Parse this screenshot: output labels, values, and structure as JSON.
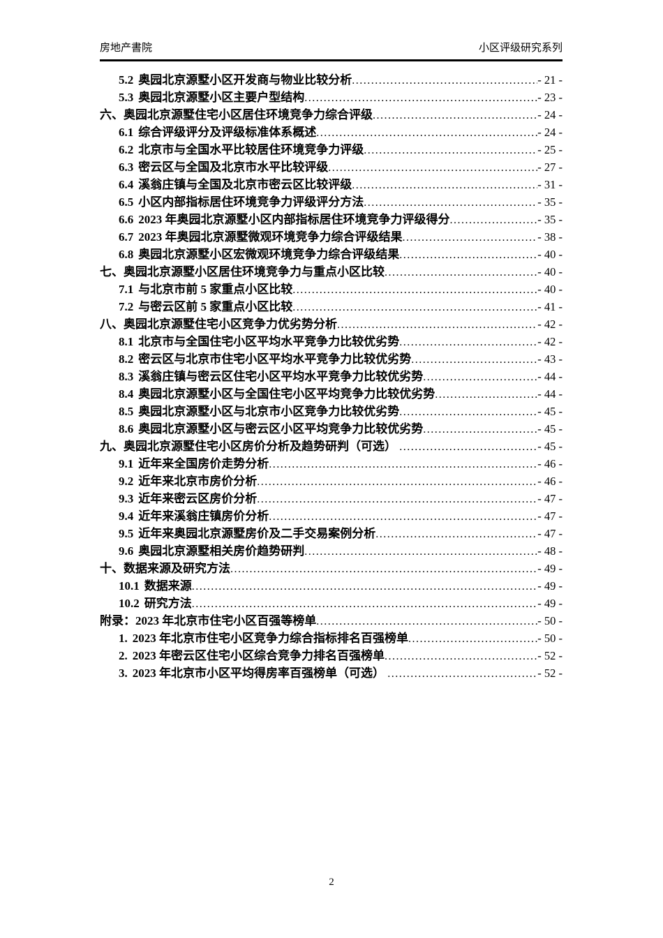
{
  "colors": {
    "text": "#000000",
    "background": "#ffffff"
  },
  "header": {
    "left": "房地产書院",
    "right": "小区评级研究系列"
  },
  "toc": {
    "entries": [
      {
        "level": 2,
        "no": "5.2",
        "title": "奥园北京源墅小区开发商与物业比较分析",
        "page": "- 21 -"
      },
      {
        "level": 2,
        "no": "5.3",
        "title": "奥园北京源墅小区主要户型结构",
        "page": "- 23 -"
      },
      {
        "level": 1,
        "no": "六、",
        "title": "奥园北京源墅住宅小区居住环境竞争力综合评级",
        "page": "- 24 -"
      },
      {
        "level": 2,
        "no": "6.1",
        "title": "综合评级评分及评级标准体系概述",
        "page": "- 24 -"
      },
      {
        "level": 2,
        "no": "6.2",
        "title": "北京市与全国水平比较居住环境竞争力评级",
        "page": "- 25 -"
      },
      {
        "level": 2,
        "no": "6.3",
        "title": "密云区与全国及北京市水平比较评级",
        "page": "- 27 -"
      },
      {
        "level": 2,
        "no": "6.4",
        "title": "溪翁庄镇与全国及北京市密云区比较评级",
        "page": "- 31 -"
      },
      {
        "level": 2,
        "no": "6.5",
        "title": "小区内部指标居住环境竞争力评级评分方法",
        "page": "- 35 -"
      },
      {
        "level": 2,
        "no": "6.6",
        "title": "2023 年奥园北京源墅小区内部指标居住环境竞争力评级得分",
        "page": "- 35 -"
      },
      {
        "level": 2,
        "no": "6.7",
        "title": "2023 年奥园北京源墅微观环境竞争力综合评级结果",
        "page": "- 38 -"
      },
      {
        "level": 2,
        "no": "6.8",
        "title": "奥园北京源墅小区宏微观环境竞争力综合评级结果",
        "page": "- 40 -"
      },
      {
        "level": 1,
        "no": "七、",
        "title": "奥园北京源墅小区居住环境竞争力与重点小区比较",
        "page": "- 40 -"
      },
      {
        "level": 2,
        "no": "7.1",
        "title": "与北京市前 5 家重点小区比较",
        "page": "- 40 -"
      },
      {
        "level": 2,
        "no": "7.2",
        "title": "与密云区前 5 家重点小区比较",
        "page": "- 41 -"
      },
      {
        "level": 1,
        "no": "八、",
        "title": "奥园北京源墅住宅小区竞争力优劣势分析",
        "page": "- 42 -"
      },
      {
        "level": 2,
        "no": "8.1",
        "title": "北京市与全国住宅小区平均水平竞争力比较优劣势",
        "page": "- 42 -"
      },
      {
        "level": 2,
        "no": "8.2",
        "title": "密云区与北京市住宅小区平均水平竞争力比较优劣势",
        "page": "- 43 -"
      },
      {
        "level": 2,
        "no": "8.3",
        "title": "溪翁庄镇与密云区住宅小区平均水平竞争力比较优劣势",
        "page": "- 44 -"
      },
      {
        "level": 2,
        "no": "8.4",
        "title": "奥园北京源墅小区与全国住宅小区平均竞争力比较优劣势",
        "page": "- 44 -"
      },
      {
        "level": 2,
        "no": "8.5",
        "title": "奥园北京源墅小区与北京市小区竞争力比较优劣势",
        "page": "- 45 -"
      },
      {
        "level": 2,
        "no": "8.6",
        "title": "奥园北京源墅小区与密云区小区平均竞争力比较优劣势",
        "page": "- 45 -"
      },
      {
        "level": 1,
        "no": "九、",
        "title": "奥园北京源墅住宅小区房价分析及趋势研判（可选） ",
        "page": "- 45 -"
      },
      {
        "level": 2,
        "no": "9.1",
        "title": "近年来全国房价走势分析",
        "page": "- 46 -"
      },
      {
        "level": 2,
        "no": "9.2",
        "title": "近年来北京市房价分析",
        "page": "- 46 -"
      },
      {
        "level": 2,
        "no": "9.3",
        "title": "近年来密云区房价分析",
        "page": "- 47 -"
      },
      {
        "level": 2,
        "no": "9.4",
        "title": "近年来溪翁庄镇房价分析",
        "page": "- 47 -"
      },
      {
        "level": 2,
        "no": "9.5",
        "title": "近年来奥园北京源墅房价及二手交易案例分析",
        "page": "- 47 -"
      },
      {
        "level": 2,
        "no": "9.6",
        "title": "奥园北京源墅相关房价趋势研判",
        "page": "- 48 -"
      },
      {
        "level": 1,
        "no": "十、",
        "title": "数据来源及研究方法",
        "page": "- 49 -"
      },
      {
        "level": 2,
        "no": "10.1",
        "title": "数据来源",
        "page": "- 49 -"
      },
      {
        "level": 2,
        "no": "10.2",
        "title": "研究方法",
        "page": "- 49 -"
      },
      {
        "level": 1,
        "no": "附录：",
        "title": "2023 年北京市住宅小区百强等榜单",
        "page": "- 50 -"
      },
      {
        "level": 2,
        "no": "1.",
        "title": "2023 年北京市住宅小区竞争力综合指标排名百强榜单",
        "page": "- 50 -"
      },
      {
        "level": 2,
        "no": "2.",
        "title": "2023 年密云区住宅小区综合竞争力排名百强榜单",
        "page": "- 52 -"
      },
      {
        "level": 2,
        "no": "3.",
        "title": "2023 年北京市小区平均得房率百强榜单（可选） ",
        "page": "- 52 -"
      }
    ]
  },
  "footer": {
    "page_number": "2"
  }
}
